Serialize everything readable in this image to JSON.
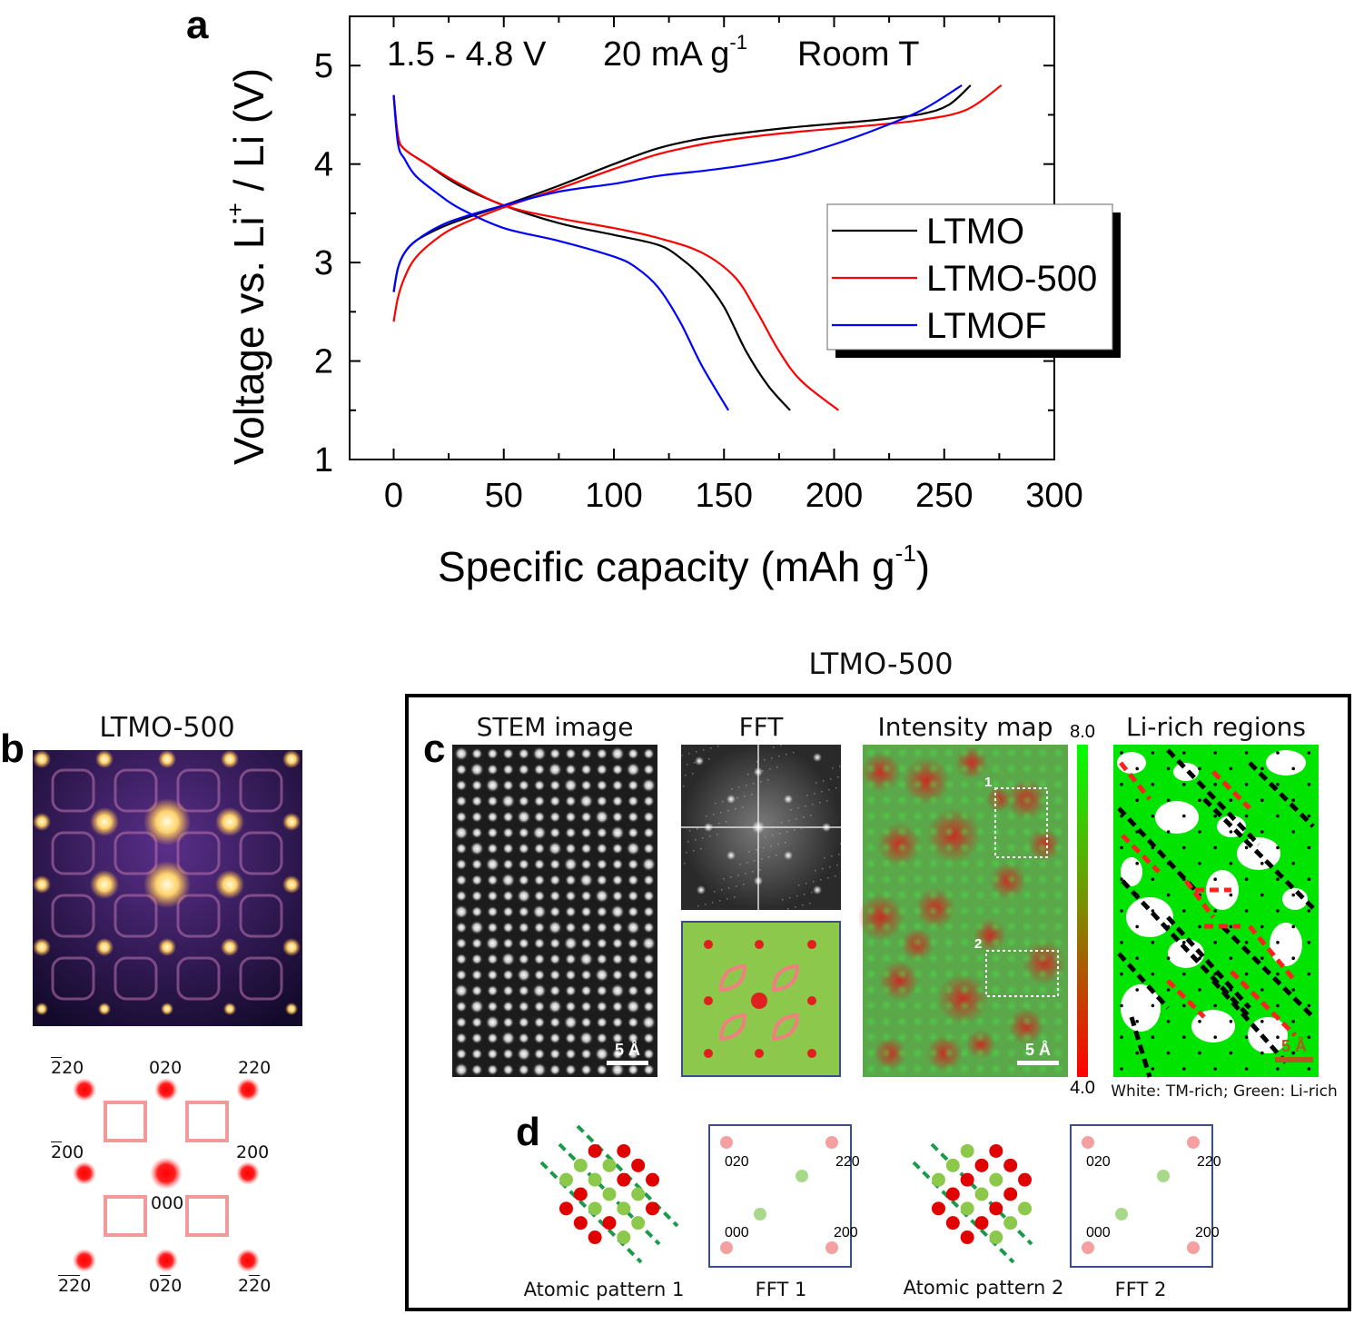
{
  "chart_data": {
    "type": "line",
    "panel_letter": "a",
    "conditions": {
      "range": "1.5 - 4.8 V",
      "rate_main": "20 mA g",
      "rate_sup": "-1",
      "temp": "Room T"
    },
    "xlabel": {
      "main": "Specific capacity (mAh g",
      "sup": "-1",
      "close": ")"
    },
    "ylabel": {
      "pre": "Voltage vs. Li",
      "sup": "+",
      "post": " / Li (V)"
    },
    "xlim": [
      -20,
      300
    ],
    "ylim": [
      1,
      5.5
    ],
    "x_ticks": [
      "0",
      "50",
      "100",
      "150",
      "200",
      "250",
      "300"
    ],
    "y_ticks": [
      "1",
      "2",
      "3",
      "4",
      "5"
    ],
    "legend": {
      "position": "right",
      "entries": [
        "LTMO",
        "LTMO-500",
        "LTMOF"
      ]
    },
    "series": [
      {
        "name": "LTMO",
        "color": "#000000",
        "charge": [
          [
            0,
            2.7
          ],
          [
            2,
            2.95
          ],
          [
            5,
            3.1
          ],
          [
            10,
            3.22
          ],
          [
            20,
            3.34
          ],
          [
            30,
            3.43
          ],
          [
            50,
            3.58
          ],
          [
            75,
            3.78
          ],
          [
            100,
            4.0
          ],
          [
            120,
            4.16
          ],
          [
            140,
            4.26
          ],
          [
            160,
            4.32
          ],
          [
            180,
            4.37
          ],
          [
            200,
            4.41
          ],
          [
            220,
            4.45
          ],
          [
            240,
            4.51
          ],
          [
            252,
            4.6
          ],
          [
            262,
            4.8
          ]
        ],
        "discharge": [
          [
            0,
            4.7
          ],
          [
            2,
            4.28
          ],
          [
            5,
            4.15
          ],
          [
            15,
            4.0
          ],
          [
            30,
            3.78
          ],
          [
            50,
            3.58
          ],
          [
            75,
            3.4
          ],
          [
            100,
            3.28
          ],
          [
            120,
            3.18
          ],
          [
            130,
            3.05
          ],
          [
            140,
            2.85
          ],
          [
            150,
            2.55
          ],
          [
            160,
            2.1
          ],
          [
            170,
            1.75
          ],
          [
            180,
            1.5
          ]
        ]
      },
      {
        "name": "LTMO-500",
        "color": "#ff0000",
        "charge": [
          [
            0,
            2.4
          ],
          [
            2,
            2.65
          ],
          [
            5,
            2.85
          ],
          [
            10,
            3.05
          ],
          [
            20,
            3.25
          ],
          [
            30,
            3.38
          ],
          [
            50,
            3.56
          ],
          [
            75,
            3.75
          ],
          [
            100,
            3.95
          ],
          [
            120,
            4.1
          ],
          [
            140,
            4.2
          ],
          [
            160,
            4.27
          ],
          [
            180,
            4.32
          ],
          [
            200,
            4.36
          ],
          [
            220,
            4.4
          ],
          [
            240,
            4.45
          ],
          [
            260,
            4.55
          ],
          [
            276,
            4.8
          ]
        ],
        "discharge": [
          [
            0,
            4.7
          ],
          [
            2,
            4.28
          ],
          [
            5,
            4.15
          ],
          [
            15,
            4.0
          ],
          [
            30,
            3.8
          ],
          [
            50,
            3.58
          ],
          [
            75,
            3.45
          ],
          [
            100,
            3.35
          ],
          [
            120,
            3.25
          ],
          [
            140,
            3.1
          ],
          [
            155,
            2.85
          ],
          [
            165,
            2.5
          ],
          [
            175,
            2.1
          ],
          [
            185,
            1.8
          ],
          [
            202,
            1.5
          ]
        ]
      },
      {
        "name": "LTMOF",
        "color": "#0000ff",
        "charge": [
          [
            0,
            2.7
          ],
          [
            2,
            2.95
          ],
          [
            5,
            3.1
          ],
          [
            10,
            3.22
          ],
          [
            20,
            3.36
          ],
          [
            30,
            3.45
          ],
          [
            50,
            3.58
          ],
          [
            75,
            3.72
          ],
          [
            100,
            3.8
          ],
          [
            120,
            3.88
          ],
          [
            140,
            3.93
          ],
          [
            160,
            3.99
          ],
          [
            180,
            4.07
          ],
          [
            200,
            4.2
          ],
          [
            220,
            4.36
          ],
          [
            240,
            4.55
          ],
          [
            258,
            4.8
          ]
        ],
        "discharge": [
          [
            0,
            4.7
          ],
          [
            2,
            4.2
          ],
          [
            5,
            4.05
          ],
          [
            10,
            3.88
          ],
          [
            20,
            3.7
          ],
          [
            30,
            3.55
          ],
          [
            50,
            3.35
          ],
          [
            75,
            3.22
          ],
          [
            100,
            3.06
          ],
          [
            110,
            2.95
          ],
          [
            120,
            2.75
          ],
          [
            130,
            2.4
          ],
          [
            140,
            1.95
          ],
          [
            152,
            1.5
          ]
        ]
      }
    ]
  },
  "panel_b": {
    "letter": "b",
    "title": "LTMO-500",
    "indices": {
      "m2_2": "2",
      "m2_2b": "20",
      "i020": "020",
      "i220": "220",
      "m2_00a": "2",
      "m2_00b": "00",
      "i200": "200",
      "i000": "000",
      "bl_a": "2",
      "bl_b": "2",
      "bl_c": "0",
      "bm_a": "0",
      "bm_b": "2",
      "bm_c": "0",
      "br_a": "2",
      "br_b": "2",
      "br_c": "0"
    }
  },
  "panel_c": {
    "letter": "c",
    "header": "LTMO-500",
    "titles": [
      "STEM image",
      "FFT",
      "Intensity map",
      "Li-rich regions"
    ],
    "scale_bar": "5 Å",
    "colorbar_max": "8.0",
    "colorbar_min": "4.0",
    "box_labels": [
      "1",
      "2"
    ],
    "li_caption": "White: TM-rich; Green: Li-rich",
    "colors": {
      "li_green": "#00e400",
      "tm_red": "#ff0000",
      "fft_bg": "#8cc84b",
      "panel_frame": "#000000"
    }
  },
  "panel_d": {
    "letter": "d",
    "pattern1": "Atomic pattern 1",
    "fft1": "FFT 1",
    "pattern2": "Atomic pattern 2",
    "fft2": "FFT 2",
    "spot_labels": [
      "020",
      "220",
      "000",
      "200"
    ]
  }
}
